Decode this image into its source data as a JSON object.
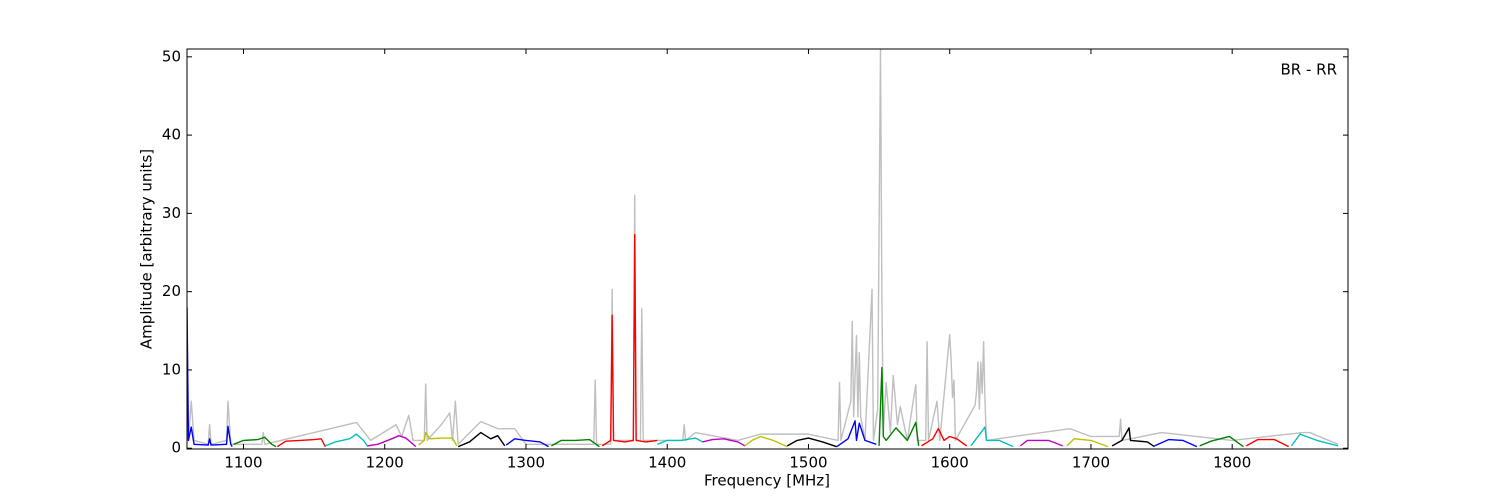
{
  "chart_data": {
    "type": "line",
    "xlabel": "Frequency [MHz]",
    "ylabel": "Amplitude [arbitrary units]",
    "annotation": "BR - RR",
    "xlim": [
      1060,
      1882
    ],
    "ylim": [
      -0.1,
      51
    ],
    "xticks": [
      1100,
      1200,
      1300,
      1400,
      1500,
      1600,
      1700,
      1800
    ],
    "yticks": [
      0,
      10,
      20,
      30,
      40,
      50
    ],
    "series": [
      {
        "color": "#bfbfbf",
        "x": [
          1060,
          1061,
          1063,
          1065,
          1075,
          1076,
          1077,
          1088,
          1089,
          1091,
          1113,
          1114,
          1115,
          1180,
          1190,
          1208,
          1212,
          1217,
          1220,
          1228,
          1229,
          1230,
          1240,
          1246,
          1248,
          1250,
          1252,
          1268,
          1280,
          1292,
          1300,
          1348,
          1349,
          1350,
          1360,
          1361,
          1362,
          1376,
          1377,
          1378,
          1381,
          1382,
          1383,
          1411,
          1412,
          1413,
          1420,
          1450,
          1466,
          1500,
          1521,
          1522,
          1523,
          1530,
          1531,
          1532,
          1534,
          1535,
          1536,
          1537,
          1540,
          1545,
          1546,
          1549,
          1551,
          1552,
          1553,
          1555,
          1558,
          1560,
          1563,
          1565,
          1570,
          1575,
          1576,
          1577,
          1583,
          1584,
          1585,
          1591,
          1593,
          1600,
          1601,
          1602,
          1603,
          1604,
          1618,
          1619,
          1620,
          1621,
          1622,
          1623,
          1624,
          1625,
          1626,
          1685,
          1700,
          1720,
          1721,
          1722,
          1750,
          1800,
          1850,
          1855,
          1875
        ],
        "values": [
          18,
          1,
          6,
          1,
          0.5,
          3,
          0.5,
          1,
          6,
          0.5,
          0.5,
          2,
          0.5,
          3.3,
          1,
          3,
          1.5,
          4.2,
          1,
          1,
          8.2,
          1,
          3,
          4.5,
          1,
          6,
          0.5,
          3.4,
          2.5,
          2.5,
          0.5,
          0.5,
          8.7,
          0.5,
          0.5,
          20.3,
          1,
          1,
          32.3,
          1,
          1,
          17.8,
          1,
          1,
          3,
          1,
          2,
          1,
          1.8,
          1.8,
          1,
          8.4,
          1,
          6,
          16.2,
          4,
          14.4,
          4,
          12.2,
          4,
          1,
          20.3,
          1,
          5,
          50.9,
          19,
          2,
          8.4,
          2,
          9.3,
          3,
          5.3,
          1,
          7,
          8.1,
          1,
          1,
          13.6,
          1,
          6,
          1,
          14.5,
          11.3,
          6.5,
          8.7,
          1,
          5.5,
          7.3,
          11,
          5,
          11,
          7,
          13.6,
          6,
          1,
          2.5,
          1.5,
          1.5,
          3.7,
          1,
          2,
          1,
          2,
          2,
          0.5
        ]
      },
      {
        "color": "#0000ff",
        "x": [
          1060,
          1061,
          1063,
          1065,
          1075,
          1076,
          1077,
          1088,
          1089,
          1091,
          1092
        ],
        "values": [
          18,
          1,
          2.7,
          0.5,
          0.4,
          1.2,
          0.4,
          0.5,
          2.8,
          0.5,
          0.2
        ]
      },
      {
        "color": "#008000",
        "x": [
          1093,
          1100,
          1110,
          1115,
          1120,
          1123
        ],
        "values": [
          0.5,
          1,
          1.1,
          1.4,
          0.5,
          0.2
        ]
      },
      {
        "color": "#ff0000",
        "x": [
          1124,
          1130,
          1140,
          1150,
          1155,
          1158
        ],
        "values": [
          0.2,
          0.9,
          1.0,
          1.1,
          1.2,
          0.2
        ]
      },
      {
        "color": "#00bfbf",
        "x": [
          1158,
          1165,
          1175,
          1180,
          1185,
          1188
        ],
        "values": [
          0.3,
          0.8,
          1.2,
          1.8,
          1.0,
          0.2
        ]
      },
      {
        "color": "#bf00bf",
        "x": [
          1188,
          1195,
          1205,
          1210,
          1215,
          1222
        ],
        "values": [
          0.3,
          0.5,
          1.2,
          1.6,
          1.3,
          0.2
        ]
      },
      {
        "color": "#bfbf00",
        "x": [
          1224,
          1228,
          1229,
          1232,
          1240,
          1248,
          1251
        ],
        "values": [
          0.4,
          1.0,
          2,
          1.2,
          1.3,
          1.3,
          0.3
        ]
      },
      {
        "color": "#000000",
        "x": [
          1252,
          1260,
          1268,
          1275,
          1280,
          1285
        ],
        "values": [
          0.2,
          0.8,
          2.0,
          1.2,
          1.6,
          0.3
        ]
      },
      {
        "color": "#0000ff",
        "x": [
          1286,
          1292,
          1300,
          1310,
          1316
        ],
        "values": [
          0.4,
          1.2,
          1.0,
          0.8,
          0.2
        ]
      },
      {
        "color": "#008000",
        "x": [
          1318,
          1325,
          1335,
          1345,
          1352
        ],
        "values": [
          0.3,
          1.0,
          1.0,
          1.1,
          0.2
        ]
      },
      {
        "color": "#ff0000",
        "x": [
          1354,
          1360,
          1361,
          1362,
          1370,
          1376,
          1377,
          1378,
          1385,
          1393
        ],
        "values": [
          0.3,
          1,
          17,
          1,
          0.8,
          1,
          27.3,
          1,
          0.8,
          1
        ]
      },
      {
        "color": "#00bfbf",
        "x": [
          1393,
          1400,
          1410,
          1420,
          1425
        ],
        "values": [
          0.5,
          1,
          1,
          1.3,
          0.8
        ]
      },
      {
        "color": "#bf00bf",
        "x": [
          1425,
          1432,
          1440,
          1450,
          1455
        ],
        "values": [
          0.8,
          1.1,
          1.2,
          0.8,
          0.3
        ]
      },
      {
        "color": "#bfbf00",
        "x": [
          1455,
          1460,
          1466,
          1475,
          1485
        ],
        "values": [
          0.3,
          1,
          1.5,
          1.0,
          0.2
        ]
      },
      {
        "color": "#000000",
        "x": [
          1485,
          1492,
          1500,
          1510,
          1520
        ],
        "values": [
          0.3,
          1,
          1.3,
          0.8,
          0.2
        ]
      },
      {
        "color": "#0000ff",
        "x": [
          1520,
          1528,
          1533,
          1534,
          1536,
          1540,
          1548
        ],
        "values": [
          0.2,
          1.2,
          3.5,
          1,
          3.2,
          1,
          0.5
        ]
      },
      {
        "color": "#008000",
        "x": [
          1550,
          1552,
          1553,
          1555,
          1562,
          1570,
          1576,
          1578
        ],
        "values": [
          0.3,
          10.3,
          1.5,
          1,
          2.6,
          1,
          3.3,
          0.3
        ]
      },
      {
        "color": "#ff0000",
        "x": [
          1580,
          1588,
          1592,
          1596,
          1600,
          1605,
          1612
        ],
        "values": [
          0.3,
          1.2,
          2.5,
          1,
          1.5,
          1.2,
          0.3
        ]
      },
      {
        "color": "#00bfbf",
        "x": [
          1615,
          1620,
          1625,
          1626,
          1635,
          1645
        ],
        "values": [
          0.3,
          1.5,
          2.7,
          1,
          1,
          0.2
        ]
      },
      {
        "color": "#bf00bf",
        "x": [
          1650,
          1655,
          1670,
          1680
        ],
        "values": [
          0.3,
          1,
          1,
          0.3
        ]
      },
      {
        "color": "#bfbf00",
        "x": [
          1683,
          1688,
          1700,
          1712
        ],
        "values": [
          0.3,
          1.2,
          1.0,
          0.2
        ]
      },
      {
        "color": "#000000",
        "x": [
          1715,
          1722,
          1727,
          1728,
          1740,
          1745
        ],
        "values": [
          0.3,
          1,
          2.6,
          1,
          0.8,
          0.2
        ]
      },
      {
        "color": "#0000ff",
        "x": [
          1745,
          1755,
          1765,
          1775
        ],
        "values": [
          0.3,
          1.1,
          1.0,
          0.2
        ]
      },
      {
        "color": "#008000",
        "x": [
          1777,
          1785,
          1798,
          1808
        ],
        "values": [
          0.3,
          0.9,
          1.5,
          0.2
        ]
      },
      {
        "color": "#ff0000",
        "x": [
          1810,
          1818,
          1830,
          1840
        ],
        "values": [
          0.3,
          1.1,
          1.1,
          0.2
        ]
      },
      {
        "color": "#00bfbf",
        "x": [
          1842,
          1848,
          1860,
          1875
        ],
        "values": [
          0.3,
          1.8,
          1.0,
          0.3
        ]
      }
    ]
  }
}
